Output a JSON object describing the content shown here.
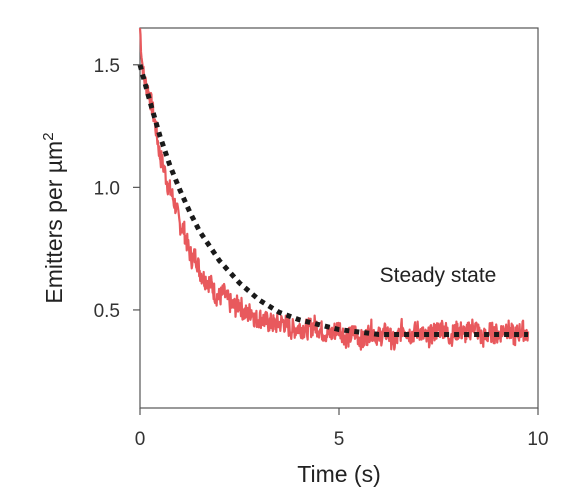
{
  "chart_data": {
    "type": "line",
    "title": "",
    "xlabel": "Time (s)",
    "ylabel_main": "Emitters per µm",
    "ylabel_superscript": "2",
    "xlim": [
      0,
      10
    ],
    "ylim": [
      0.1,
      1.65
    ],
    "x_ticks": [
      0,
      5,
      10
    ],
    "x_tick_labels": [
      "0",
      "5",
      "10"
    ],
    "y_ticks": [
      0.5,
      1.0,
      1.5
    ],
    "y_tick_labels": [
      "0.5",
      "1.0",
      "1.5"
    ],
    "grid": false,
    "annotation": "Steady state",
    "series": [
      {
        "kind": "measured",
        "color": "#e8595d",
        "x": [
          0,
          0.05,
          0.1,
          0.2,
          0.3,
          0.4,
          0.5,
          0.6,
          0.7,
          0.8,
          0.9,
          1.0,
          1.1,
          1.2,
          1.3,
          1.4,
          1.5,
          1.6,
          1.7,
          1.8,
          1.9,
          2.0,
          2.1,
          2.2,
          2.3,
          2.4,
          2.5,
          2.6,
          2.7,
          2.8,
          2.9,
          3.0,
          3.2,
          3.4,
          3.6,
          3.8,
          4.0,
          4.2,
          4.4,
          4.6,
          4.8,
          5.0,
          5.2,
          5.4,
          5.6,
          5.8,
          6.0,
          6.2,
          6.4,
          6.6,
          6.8,
          7.0,
          7.2,
          7.4,
          7.6,
          7.8,
          8.0,
          8.2,
          8.4,
          8.6,
          8.8,
          9.0,
          9.2,
          9.4,
          9.6,
          9.75
        ],
        "y": [
          1.65,
          1.52,
          1.44,
          1.4,
          1.33,
          1.24,
          1.13,
          1.08,
          1.01,
          0.97,
          0.92,
          0.85,
          0.83,
          0.76,
          0.71,
          0.72,
          0.66,
          0.63,
          0.62,
          0.6,
          0.56,
          0.55,
          0.57,
          0.54,
          0.52,
          0.51,
          0.53,
          0.49,
          0.48,
          0.5,
          0.46,
          0.47,
          0.45,
          0.44,
          0.45,
          0.42,
          0.43,
          0.42,
          0.44,
          0.41,
          0.4,
          0.43,
          0.38,
          0.41,
          0.37,
          0.42,
          0.39,
          0.41,
          0.36,
          0.43,
          0.4,
          0.42,
          0.38,
          0.41,
          0.43,
          0.39,
          0.42,
          0.4,
          0.44,
          0.38,
          0.41,
          0.4,
          0.43,
          0.39,
          0.42,
          0.4
        ]
      },
      {
        "kind": "fit",
        "color": "#1a1a1a",
        "style": "dotted",
        "x": [
          0,
          0.25,
          0.5,
          0.75,
          1.0,
          1.25,
          1.5,
          1.75,
          2.0,
          2.5,
          3.0,
          3.5,
          4.0,
          4.5,
          5.0,
          5.5,
          6.0,
          7.0,
          8.0,
          9.0,
          9.75
        ],
        "y": [
          1.5,
          1.35,
          1.21,
          1.09,
          0.99,
          0.9,
          0.82,
          0.76,
          0.7,
          0.61,
          0.54,
          0.49,
          0.46,
          0.44,
          0.42,
          0.41,
          0.4,
          0.4,
          0.4,
          0.4,
          0.4
        ]
      }
    ]
  }
}
